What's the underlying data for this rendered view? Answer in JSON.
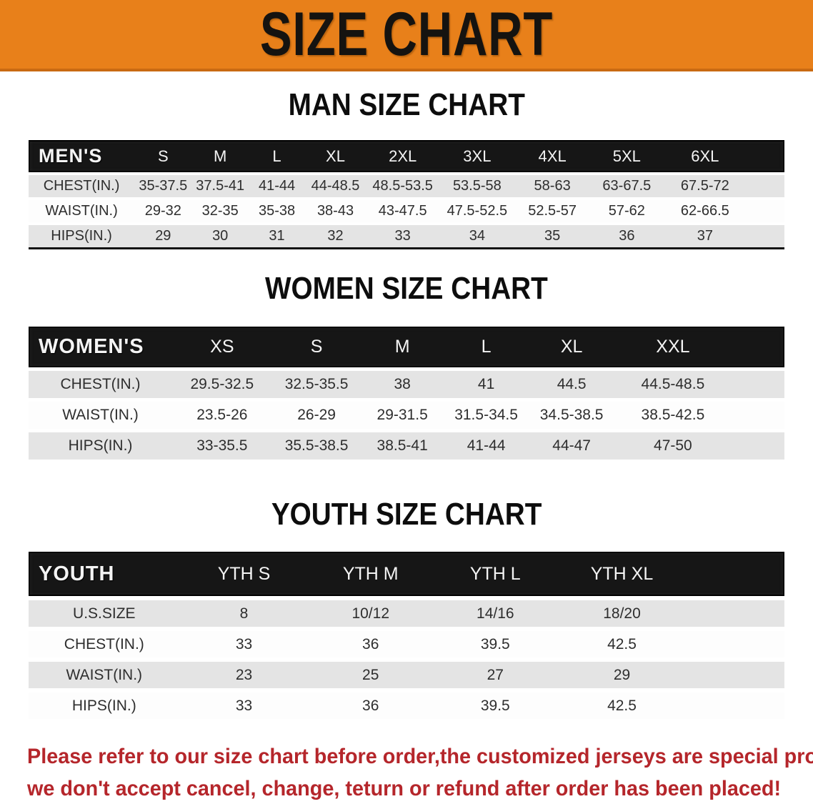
{
  "banner": {
    "title": "SIZE CHART"
  },
  "men": {
    "title": "MAN SIZE CHART",
    "header": [
      "MEN'S",
      "S",
      "M",
      "L",
      "XL",
      "2XL",
      "3XL",
      "4XL",
      "5XL",
      "6XL"
    ],
    "rows": [
      {
        "label": "CHEST(IN.)",
        "values": [
          "35-37.5",
          "37.5-41",
          "41-44",
          "44-48.5",
          "48.5-53.5",
          "53.5-58",
          "58-63",
          "63-67.5",
          "67.5-72"
        ]
      },
      {
        "label": "WAIST(IN.)",
        "values": [
          "29-32",
          "32-35",
          "35-38",
          "38-43",
          "43-47.5",
          "47.5-52.5",
          "52.5-57",
          "57-62",
          "62-66.5"
        ]
      },
      {
        "label": "HIPS(IN.)",
        "values": [
          "29",
          "30",
          "31",
          "32",
          "33",
          "34",
          "35",
          "36",
          "37"
        ]
      }
    ]
  },
  "women": {
    "title": "WOMEN SIZE CHART",
    "header": [
      "WOMEN'S",
      "XS",
      "S",
      "M",
      "L",
      "XL",
      "XXL"
    ],
    "rows": [
      {
        "label": "CHEST(IN.)",
        "values": [
          "29.5-32.5",
          "32.5-35.5",
          "38",
          "41",
          "44.5",
          "44.5-48.5"
        ]
      },
      {
        "label": "WAIST(IN.)",
        "values": [
          "23.5-26",
          "26-29",
          "29-31.5",
          "31.5-34.5",
          "34.5-38.5",
          "38.5-42.5"
        ]
      },
      {
        "label": "HIPS(IN.)",
        "values": [
          "33-35.5",
          "35.5-38.5",
          "38.5-41",
          "41-44",
          "44-47",
          "47-50"
        ]
      }
    ]
  },
  "youth": {
    "title": "YOUTH SIZE CHART",
    "header": [
      "YOUTH",
      "YTH S",
      "YTH M",
      "YTH L",
      "YTH XL"
    ],
    "rows": [
      {
        "label": "U.S.SIZE",
        "values": [
          "8",
          "10/12",
          "14/16",
          "18/20"
        ]
      },
      {
        "label": "CHEST(IN.)",
        "values": [
          "33",
          "36",
          "39.5",
          "42.5"
        ]
      },
      {
        "label": "WAIST(IN.)",
        "values": [
          "23",
          "25",
          "27",
          "29"
        ]
      },
      {
        "label": "HIPS(IN.)",
        "values": [
          "33",
          "36",
          "39.5",
          "42.5"
        ]
      }
    ]
  },
  "footer": {
    "line1": "Please refer to our size chart before order,the customized jerseys are special products,",
    "line2": "we don't accept cancel, change, teturn or refund after order has been placed!"
  },
  "colors": {
    "banner_bg": "#e8801a",
    "header_bar": "#161616",
    "row_gray": "#e4e4e4",
    "footer_red": "#b5262b"
  }
}
